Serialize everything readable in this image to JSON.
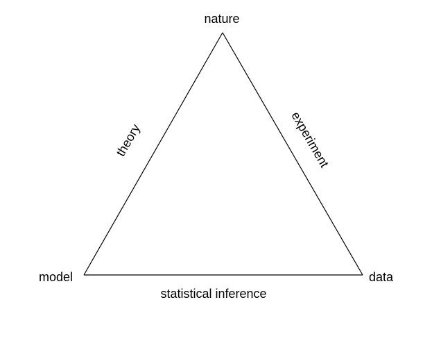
{
  "diagram": {
    "nodes": {
      "top": "nature",
      "left": "model",
      "right": "data"
    },
    "edges": {
      "left_side": "theory",
      "right_side": "experiment",
      "bottom": "statistical inference"
    },
    "line_color": "#000000",
    "background": "#ffffff"
  }
}
